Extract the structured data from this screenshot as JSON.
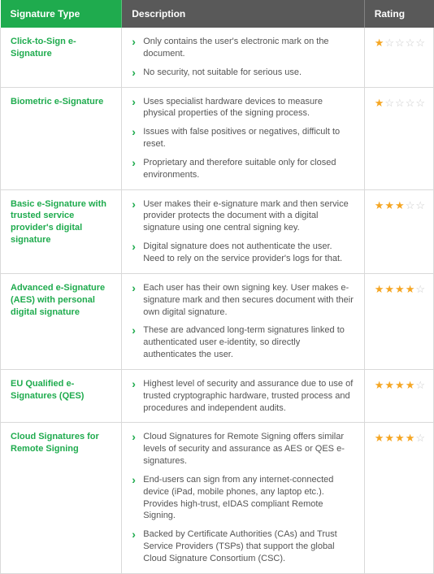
{
  "colors": {
    "header_green": "#1fab4e",
    "header_gray": "#595959",
    "sig_type_text": "#1fab4e",
    "bullet_caret": "#1fab4e",
    "star_filled": "#f5a623",
    "star_empty": "#cccccc",
    "border": "#d9d9d9",
    "body_text": "#555555"
  },
  "columns": {
    "widths_pct": [
      28,
      56,
      16
    ],
    "headers": [
      "Signature Type",
      "Description",
      "Rating"
    ]
  },
  "rows": [
    {
      "type": "Click-to-Sign e-Signature",
      "desc": [
        "Only contains the user's electronic mark on the document.",
        "No security, not suitable for serious use."
      ],
      "rating": 1
    },
    {
      "type": "Biometric e-Signature",
      "desc": [
        "Uses specialist hardware devices to measure physical properties of the signing process.",
        "Issues with false positives or negatives, difficult to reset.",
        "Proprietary and therefore suitable only for closed environments."
      ],
      "rating": 1
    },
    {
      "type": "Basic e-Signature with trusted service provider's digital signature",
      "desc": [
        "User makes their e-signature mark and then service provider protects the document with a digital signature using one central signing key.",
        "Digital signature does not authenticate the user. Need to rely on the service provider's logs for that."
      ],
      "rating": 3
    },
    {
      "type": "Advanced e-Signature (AES) with personal digital signature",
      "desc": [
        "Each user has their own signing key. User makes e-signature mark and then secures document with their own digital signature.",
        "These are advanced long-term signatures linked to authenticated user e-identity, so directly authenticates the user."
      ],
      "rating": 4
    },
    {
      "type": "EU Qualified e-Signatures (QES)",
      "desc": [
        "Highest level of security and assurance due to use of trusted cryptographic hardware, trusted process and procedures and independent audits."
      ],
      "rating": 4
    },
    {
      "type": "Cloud Signatures for Remote Signing",
      "desc": [
        "Cloud Signatures for Remote Signing offers similar levels of security and assurance as AES or QES e-signatures.",
        "End-users can sign from any internet-connected device (iPad, mobile phones, any laptop etc.). Provides high-trust, eIDAS compliant Remote Signing.",
        "Backed by Certificate Authorities (CAs) and Trust Service Providers (TSPs) that support the global Cloud Signature Consortium (CSC)."
      ],
      "rating": 4
    }
  ],
  "rating_max": 5
}
